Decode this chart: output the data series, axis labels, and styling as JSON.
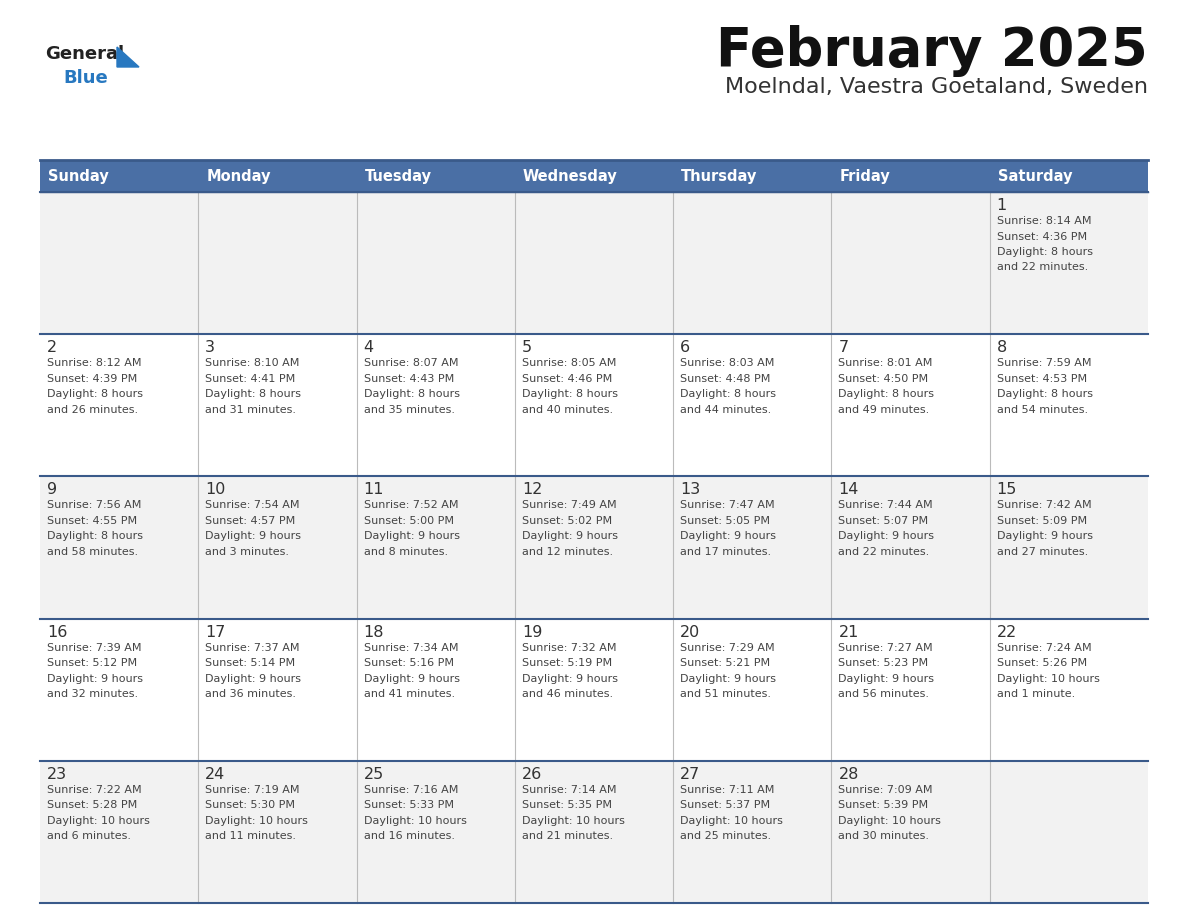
{
  "title": "February 2025",
  "subtitle": "Moelndal, Vaestra Goetaland, Sweden",
  "days_of_week": [
    "Sunday",
    "Monday",
    "Tuesday",
    "Wednesday",
    "Thursday",
    "Friday",
    "Saturday"
  ],
  "header_bg": "#4a6fa5",
  "header_text": "#ffffff",
  "row_odd_bg": "#f2f2f2",
  "row_even_bg": "#ffffff",
  "border_color": "#3a5a8a",
  "day_number_color": "#333333",
  "text_color": "#444444",
  "logo_general_color": "#222222",
  "logo_blue_color": "#2878c0",
  "fig_width": 11.88,
  "fig_height": 9.18,
  "weeks": [
    [
      {
        "day": null,
        "info": null
      },
      {
        "day": null,
        "info": null
      },
      {
        "day": null,
        "info": null
      },
      {
        "day": null,
        "info": null
      },
      {
        "day": null,
        "info": null
      },
      {
        "day": null,
        "info": null
      },
      {
        "day": 1,
        "info": "Sunrise: 8:14 AM\nSunset: 4:36 PM\nDaylight: 8 hours\nand 22 minutes."
      }
    ],
    [
      {
        "day": 2,
        "info": "Sunrise: 8:12 AM\nSunset: 4:39 PM\nDaylight: 8 hours\nand 26 minutes."
      },
      {
        "day": 3,
        "info": "Sunrise: 8:10 AM\nSunset: 4:41 PM\nDaylight: 8 hours\nand 31 minutes."
      },
      {
        "day": 4,
        "info": "Sunrise: 8:07 AM\nSunset: 4:43 PM\nDaylight: 8 hours\nand 35 minutes."
      },
      {
        "day": 5,
        "info": "Sunrise: 8:05 AM\nSunset: 4:46 PM\nDaylight: 8 hours\nand 40 minutes."
      },
      {
        "day": 6,
        "info": "Sunrise: 8:03 AM\nSunset: 4:48 PM\nDaylight: 8 hours\nand 44 minutes."
      },
      {
        "day": 7,
        "info": "Sunrise: 8:01 AM\nSunset: 4:50 PM\nDaylight: 8 hours\nand 49 minutes."
      },
      {
        "day": 8,
        "info": "Sunrise: 7:59 AM\nSunset: 4:53 PM\nDaylight: 8 hours\nand 54 minutes."
      }
    ],
    [
      {
        "day": 9,
        "info": "Sunrise: 7:56 AM\nSunset: 4:55 PM\nDaylight: 8 hours\nand 58 minutes."
      },
      {
        "day": 10,
        "info": "Sunrise: 7:54 AM\nSunset: 4:57 PM\nDaylight: 9 hours\nand 3 minutes."
      },
      {
        "day": 11,
        "info": "Sunrise: 7:52 AM\nSunset: 5:00 PM\nDaylight: 9 hours\nand 8 minutes."
      },
      {
        "day": 12,
        "info": "Sunrise: 7:49 AM\nSunset: 5:02 PM\nDaylight: 9 hours\nand 12 minutes."
      },
      {
        "day": 13,
        "info": "Sunrise: 7:47 AM\nSunset: 5:05 PM\nDaylight: 9 hours\nand 17 minutes."
      },
      {
        "day": 14,
        "info": "Sunrise: 7:44 AM\nSunset: 5:07 PM\nDaylight: 9 hours\nand 22 minutes."
      },
      {
        "day": 15,
        "info": "Sunrise: 7:42 AM\nSunset: 5:09 PM\nDaylight: 9 hours\nand 27 minutes."
      }
    ],
    [
      {
        "day": 16,
        "info": "Sunrise: 7:39 AM\nSunset: 5:12 PM\nDaylight: 9 hours\nand 32 minutes."
      },
      {
        "day": 17,
        "info": "Sunrise: 7:37 AM\nSunset: 5:14 PM\nDaylight: 9 hours\nand 36 minutes."
      },
      {
        "day": 18,
        "info": "Sunrise: 7:34 AM\nSunset: 5:16 PM\nDaylight: 9 hours\nand 41 minutes."
      },
      {
        "day": 19,
        "info": "Sunrise: 7:32 AM\nSunset: 5:19 PM\nDaylight: 9 hours\nand 46 minutes."
      },
      {
        "day": 20,
        "info": "Sunrise: 7:29 AM\nSunset: 5:21 PM\nDaylight: 9 hours\nand 51 minutes."
      },
      {
        "day": 21,
        "info": "Sunrise: 7:27 AM\nSunset: 5:23 PM\nDaylight: 9 hours\nand 56 minutes."
      },
      {
        "day": 22,
        "info": "Sunrise: 7:24 AM\nSunset: 5:26 PM\nDaylight: 10 hours\nand 1 minute."
      }
    ],
    [
      {
        "day": 23,
        "info": "Sunrise: 7:22 AM\nSunset: 5:28 PM\nDaylight: 10 hours\nand 6 minutes."
      },
      {
        "day": 24,
        "info": "Sunrise: 7:19 AM\nSunset: 5:30 PM\nDaylight: 10 hours\nand 11 minutes."
      },
      {
        "day": 25,
        "info": "Sunrise: 7:16 AM\nSunset: 5:33 PM\nDaylight: 10 hours\nand 16 minutes."
      },
      {
        "day": 26,
        "info": "Sunrise: 7:14 AM\nSunset: 5:35 PM\nDaylight: 10 hours\nand 21 minutes."
      },
      {
        "day": 27,
        "info": "Sunrise: 7:11 AM\nSunset: 5:37 PM\nDaylight: 10 hours\nand 25 minutes."
      },
      {
        "day": 28,
        "info": "Sunrise: 7:09 AM\nSunset: 5:39 PM\nDaylight: 10 hours\nand 30 minutes."
      },
      {
        "day": null,
        "info": null
      }
    ]
  ]
}
